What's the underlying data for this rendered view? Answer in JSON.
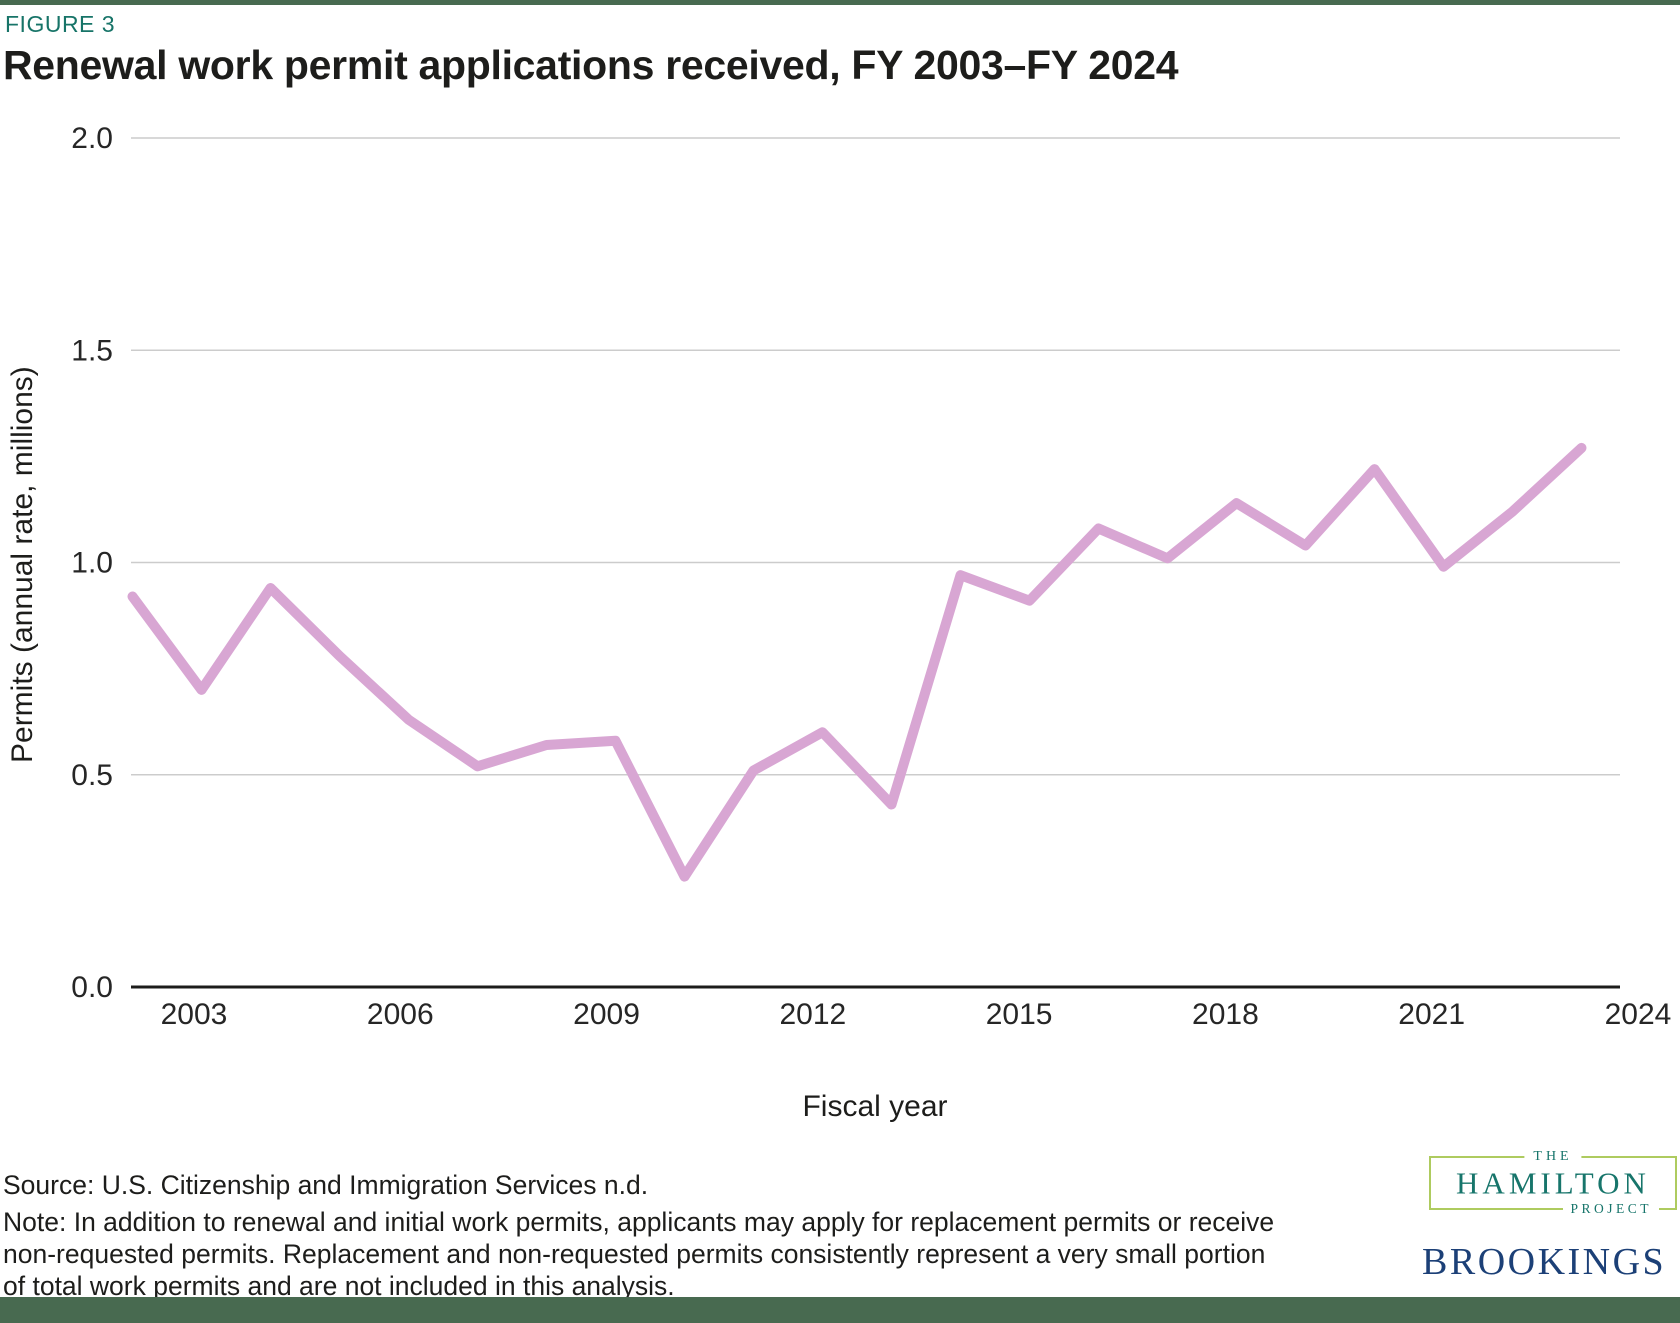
{
  "header": {
    "figure_label": "FIGURE 3",
    "title": "Renewal work permit applications received, FY 2003–FY 2024"
  },
  "chart_data": {
    "type": "line",
    "title": "Renewal work permit applications received, FY 2003–FY 2024",
    "xlabel": "Fiscal year",
    "ylabel": "Permits (annual rate, millions)",
    "x": [
      2003,
      2004,
      2005,
      2006,
      2007,
      2008,
      2009,
      2010,
      2011,
      2012,
      2013,
      2014,
      2015,
      2016,
      2017,
      2018,
      2019,
      2020,
      2021,
      2022,
      2023,
      2024
    ],
    "values": [
      0.92,
      0.7,
      0.94,
      0.78,
      0.63,
      0.52,
      0.57,
      0.58,
      0.26,
      0.51,
      0.6,
      0.43,
      0.97,
      0.91,
      1.08,
      1.01,
      1.14,
      1.04,
      1.22,
      0.99,
      1.12,
      1.27
    ],
    "x_ticks": [
      2003,
      2006,
      2009,
      2012,
      2015,
      2018,
      2021,
      2024
    ],
    "x_tick_labels": [
      "2003",
      "2006",
      "2009",
      "2012",
      "2015",
      "2018",
      "2021",
      "2024"
    ],
    "y_ticks": [
      0.0,
      0.5,
      1.0,
      1.5,
      2.0
    ],
    "y_tick_labels": [
      "0.0",
      "0.5",
      "1.0",
      "1.5",
      "2.0"
    ],
    "ylim": [
      0.0,
      2.0
    ],
    "grid": true,
    "legend": "none",
    "line_color": "#d8a6d3"
  },
  "footer": {
    "source": "Source: U.S. Citizenship and Immigration Services n.d.",
    "note_lines": [
      "Note: In addition to renewal and initial work permits, applicants may apply for replacement permits or receive",
      "non-requested permits. Replacement and non-requested permits consistently represent a very small portion",
      "of total work permits and are not included in this analysis."
    ]
  },
  "logos": {
    "hamilton_the": "THE",
    "hamilton_name": "HAMILTON",
    "hamilton_project": "PROJECT",
    "brookings": "BROOKINGS"
  },
  "colors": {
    "accent_bar": "#486a50",
    "figure_label": "#177468",
    "hamilton_teal": "#17756b",
    "hamilton_box_border": "#aecb5f",
    "brookings_navy": "#1c4077",
    "gridline": "#cccccc",
    "axis_line": "#1d1d1b"
  }
}
